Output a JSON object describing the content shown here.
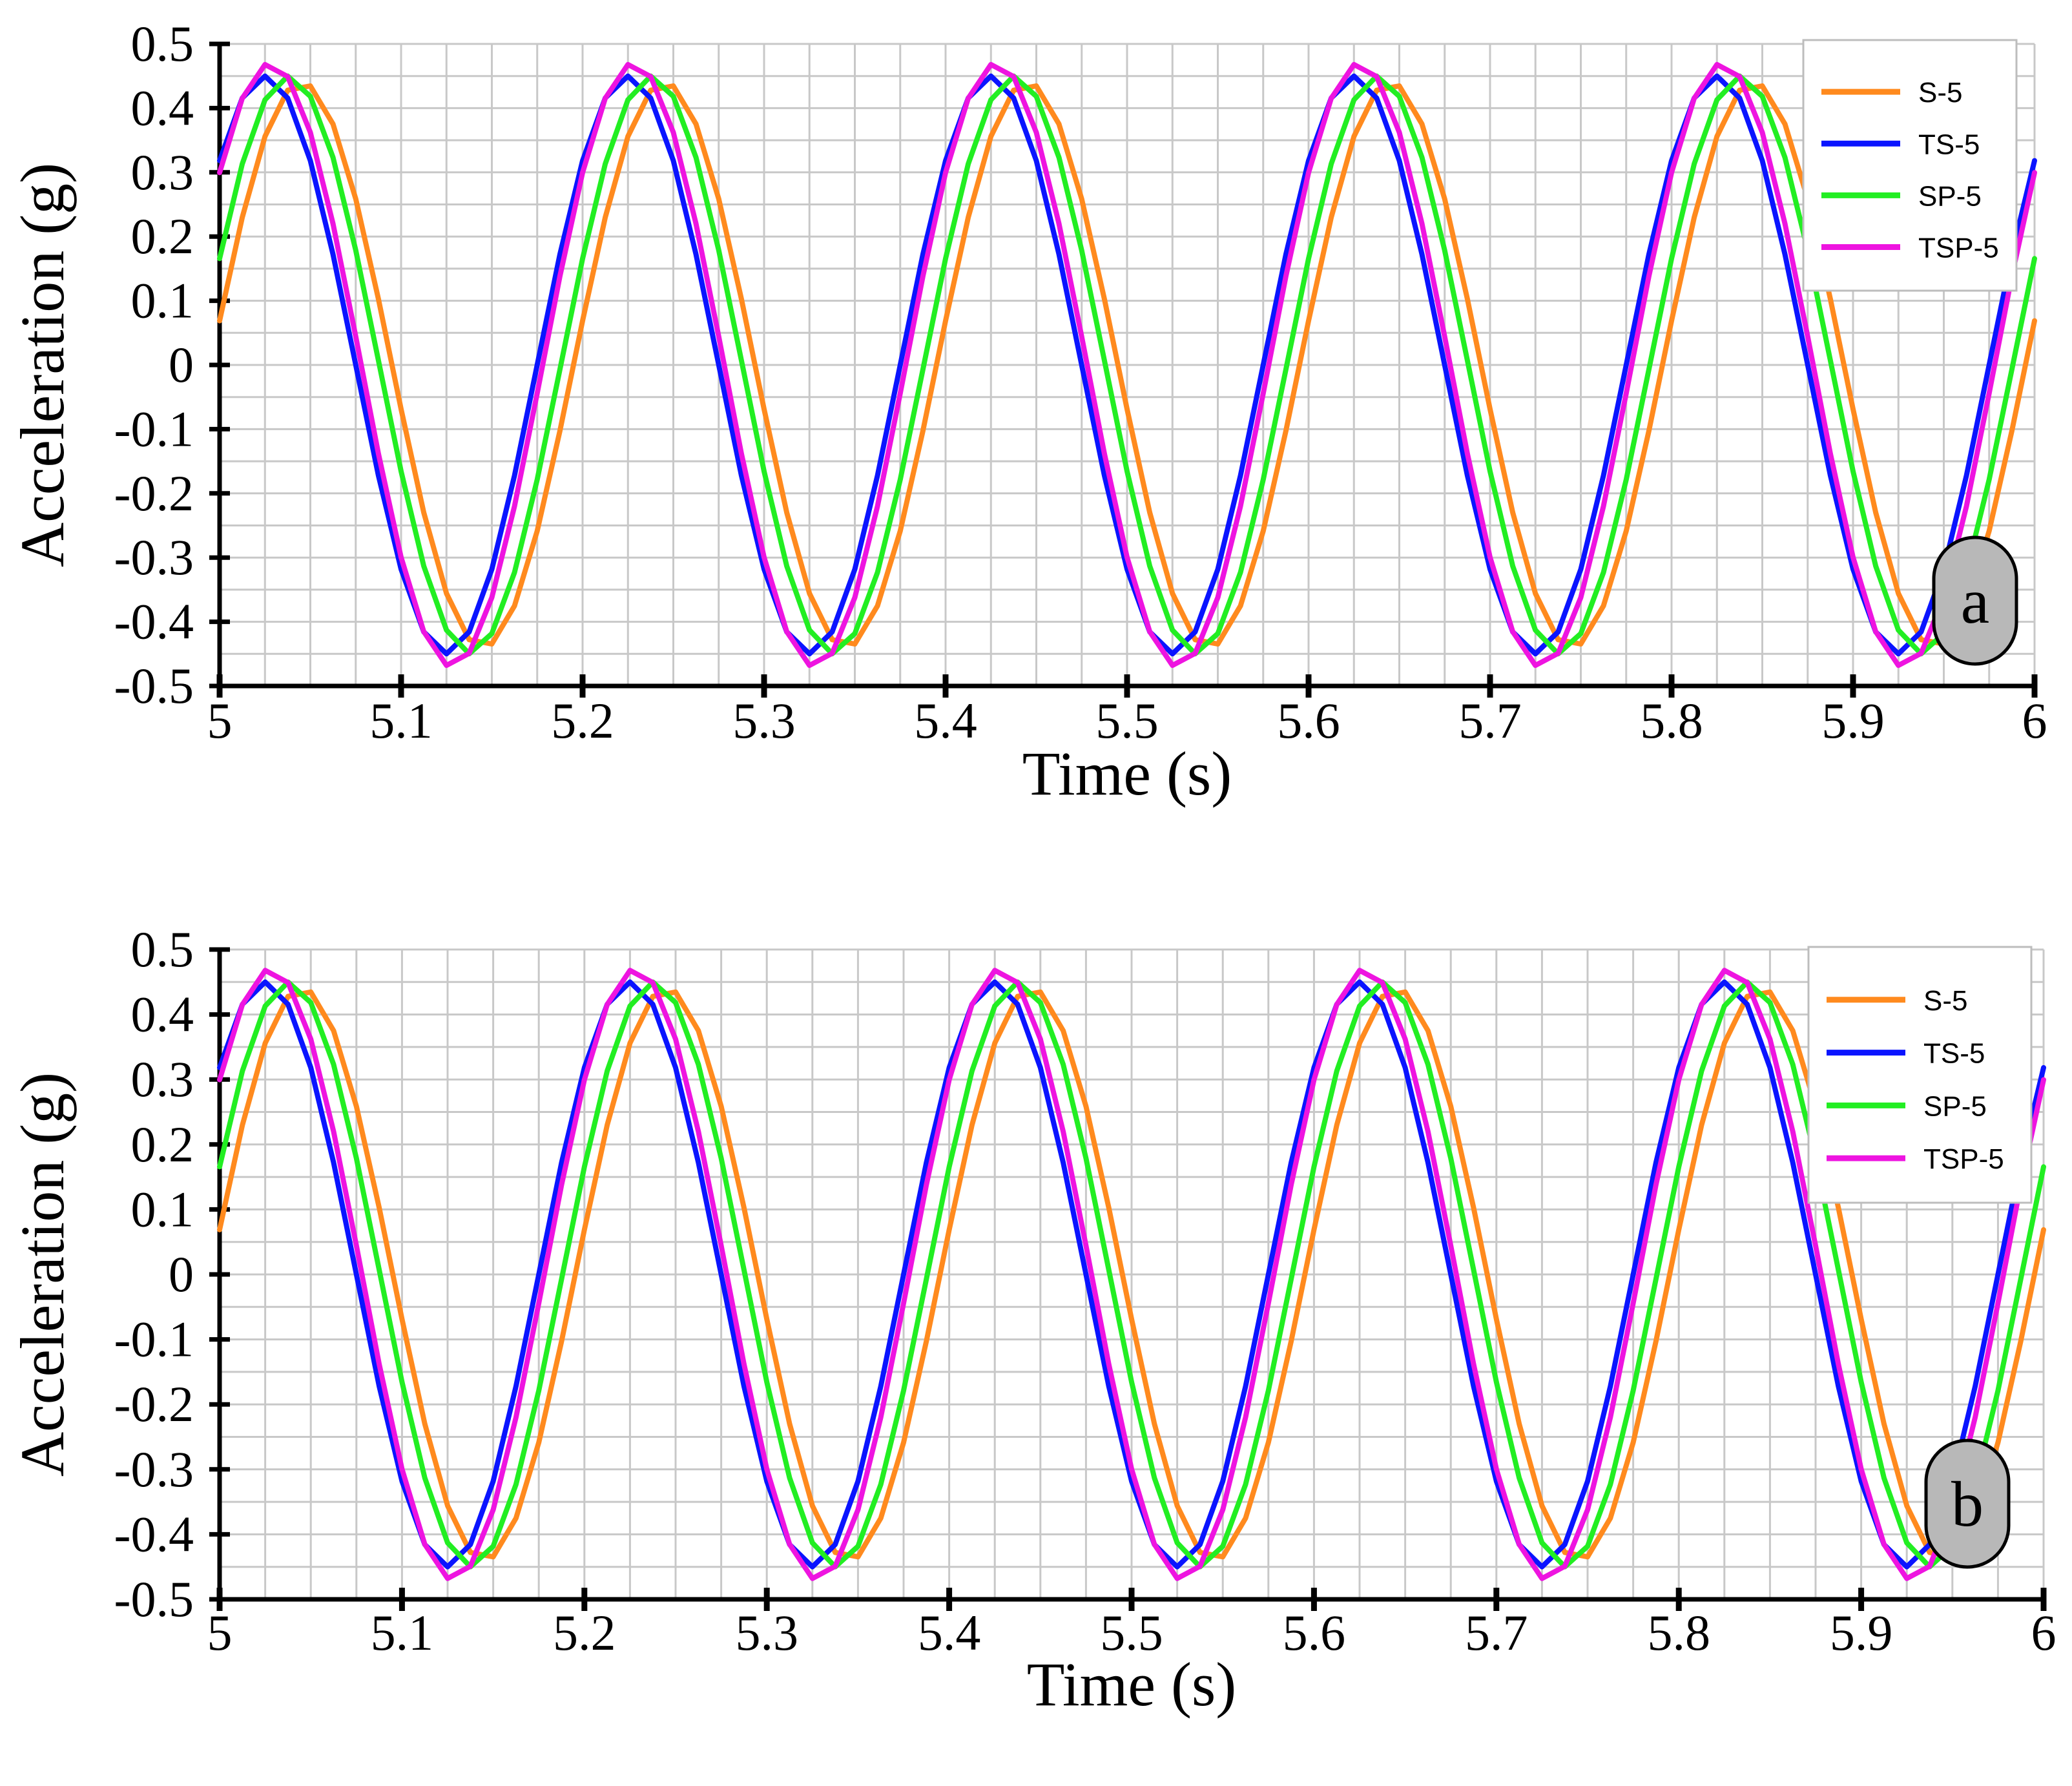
{
  "panels": [
    {
      "tag": "a",
      "xlabel": "Time (s)",
      "ylabel": "Acceleration (g)",
      "xlim": [
        5,
        6
      ],
      "ylim": [
        -0.5,
        0.5
      ],
      "x_ticks": [
        "5",
        "5.1",
        "5.2",
        "5.3",
        "5.4",
        "5.5",
        "5.6",
        "5.7",
        "5.8",
        "5.9",
        "6"
      ],
      "y_ticks": [
        "0.5",
        "0.4",
        "0.3",
        "0.2",
        "0.1",
        "0",
        "-0.1",
        "-0.2",
        "-0.3",
        "-0.4",
        "-0.5"
      ],
      "legend": [
        "S-5",
        "TS-5",
        "SP-5",
        "TSP-5"
      ]
    },
    {
      "tag": "b",
      "xlabel": "Time (s)",
      "ylabel": "Acceleration (g)",
      "xlim": [
        5,
        6
      ],
      "ylim": [
        -0.5,
        0.5
      ],
      "x_ticks": [
        "5",
        "5.1",
        "5.2",
        "5.3",
        "5.4",
        "5.5",
        "5.6",
        "5.7",
        "5.8",
        "5.9",
        "6"
      ],
      "y_ticks": [
        "0.5",
        "0.4",
        "0.3",
        "0.2",
        "0.1",
        "0",
        "-0.1",
        "-0.2",
        "-0.3",
        "-0.4",
        "-0.5"
      ],
      "legend": [
        "S-5",
        "TS-5",
        "SP-5",
        "TSP-5"
      ]
    }
  ],
  "chart_data": [
    {
      "type": "line",
      "title": "",
      "xlabel": "Time (s)",
      "ylabel": "Acceleration (g)",
      "xlim": [
        5,
        6
      ],
      "ylim": [
        -0.5,
        0.5
      ],
      "grid": true,
      "legend_position": "top-right",
      "annotation": "a",
      "sample_x": [
        5.0,
        5.02,
        5.04,
        5.06,
        5.08,
        5.1,
        5.12,
        5.14,
        5.16,
        5.18,
        5.2,
        5.22,
        5.24,
        5.26,
        5.28,
        5.3,
        5.32,
        5.34,
        5.36,
        5.38,
        5.4,
        5.42,
        5.44,
        5.46,
        5.48,
        5.5,
        5.52,
        5.54,
        5.56,
        5.58,
        5.6,
        5.62,
        5.64,
        5.66,
        5.68,
        5.7,
        5.72,
        5.74,
        5.76,
        5.78,
        5.8,
        5.82,
        5.84,
        5.86,
        5.88,
        5.9,
        5.92,
        5.94,
        5.96,
        5.98,
        6.0
      ],
      "series": [
        {
          "name": "S-5",
          "color": "#ff8a1e",
          "wave": {
            "amplitude": 0.44,
            "frequency_hz": 5.0,
            "peak_time_s": 5.045
          }
        },
        {
          "name": "TS-5",
          "color": "#0a14ff",
          "wave": {
            "amplitude": 0.45,
            "frequency_hz": 5.0,
            "peak_time_s": 5.025
          }
        },
        {
          "name": "SP-5",
          "color": "#22ee22",
          "wave": {
            "amplitude": 0.45,
            "frequency_hz": 5.0,
            "peak_time_s": 5.038
          }
        },
        {
          "name": "TSP-5",
          "color": "#ee14e0",
          "wave": {
            "amplitude": 0.47,
            "frequency_hz": 5.0,
            "peak_time_s": 5.028
          }
        }
      ]
    },
    {
      "type": "line",
      "title": "",
      "xlabel": "Time (s)",
      "ylabel": "Acceleration (g)",
      "xlim": [
        5,
        6
      ],
      "ylim": [
        -0.5,
        0.5
      ],
      "grid": true,
      "legend_position": "top-right",
      "annotation": "b",
      "sample_x": [
        5.0,
        5.02,
        5.04,
        5.06,
        5.08,
        5.1,
        5.12,
        5.14,
        5.16,
        5.18,
        5.2,
        5.22,
        5.24,
        5.26,
        5.28,
        5.3,
        5.32,
        5.34,
        5.36,
        5.38,
        5.4,
        5.42,
        5.44,
        5.46,
        5.48,
        5.5,
        5.52,
        5.54,
        5.56,
        5.58,
        5.6,
        5.62,
        5.64,
        5.66,
        5.68,
        5.7,
        5.72,
        5.74,
        5.76,
        5.78,
        5.8,
        5.82,
        5.84,
        5.86,
        5.88,
        5.9,
        5.92,
        5.94,
        5.96,
        5.98,
        6.0
      ],
      "series": [
        {
          "name": "S-5",
          "color": "#ff8a1e",
          "wave": {
            "amplitude": 0.44,
            "frequency_hz": 5.0,
            "peak_time_s": 5.045
          }
        },
        {
          "name": "TS-5",
          "color": "#0a14ff",
          "wave": {
            "amplitude": 0.45,
            "frequency_hz": 5.0,
            "peak_time_s": 5.025
          }
        },
        {
          "name": "SP-5",
          "color": "#22ee22",
          "wave": {
            "amplitude": 0.45,
            "frequency_hz": 5.0,
            "peak_time_s": 5.038
          }
        },
        {
          "name": "TSP-5",
          "color": "#ee14e0",
          "wave": {
            "amplitude": 0.47,
            "frequency_hz": 5.0,
            "peak_time_s": 5.028
          }
        }
      ]
    }
  ]
}
